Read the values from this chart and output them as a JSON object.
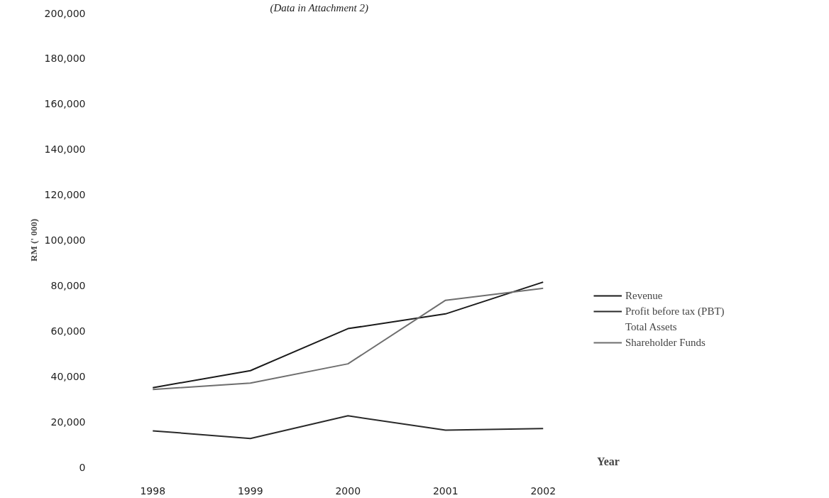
{
  "chart_data": {
    "type": "line",
    "subtitle": "(Data in Attachment 2)",
    "xlabel": "Year",
    "ylabel": "RM (' 000)",
    "categories": [
      "1998",
      "1999",
      "2000",
      "2001",
      "2002"
    ],
    "series": [
      {
        "name": "Revenue",
        "color": "#1a1a1a",
        "values": [
          35000,
          42500,
          61000,
          67500,
          81500
        ]
      },
      {
        "name": "Profit before tax (PBT)",
        "color": "#2a2a2a",
        "values": [
          16000,
          12600,
          22600,
          16300,
          17000
        ]
      },
      {
        "name": "Total Assets",
        "values": [
          null,
          null,
          null,
          null,
          null
        ]
      },
      {
        "name": "Shareholder Funds",
        "color": "#6e6e6e",
        "values": [
          34200,
          37000,
          45500,
          73500,
          78800
        ]
      }
    ],
    "ylim": [
      0,
      200000
    ],
    "yticks": [
      {
        "value": 0,
        "label": "0"
      },
      {
        "value": 20000,
        "label": "20,000"
      },
      {
        "value": 40000,
        "label": "40,000"
      },
      {
        "value": 60000,
        "label": "60,000"
      },
      {
        "value": 80000,
        "label": "80,000"
      },
      {
        "value": 100000,
        "label": "100,000"
      },
      {
        "value": 120000,
        "label": "120,000"
      },
      {
        "value": 140000,
        "label": "140,000"
      },
      {
        "value": 160000,
        "label": "160,000"
      },
      {
        "value": 180000,
        "label": "180,000"
      },
      {
        "value": 200000,
        "label": "200,000"
      }
    ],
    "grid": false,
    "legend": "right",
    "marker": "none",
    "line_style": "solid"
  }
}
